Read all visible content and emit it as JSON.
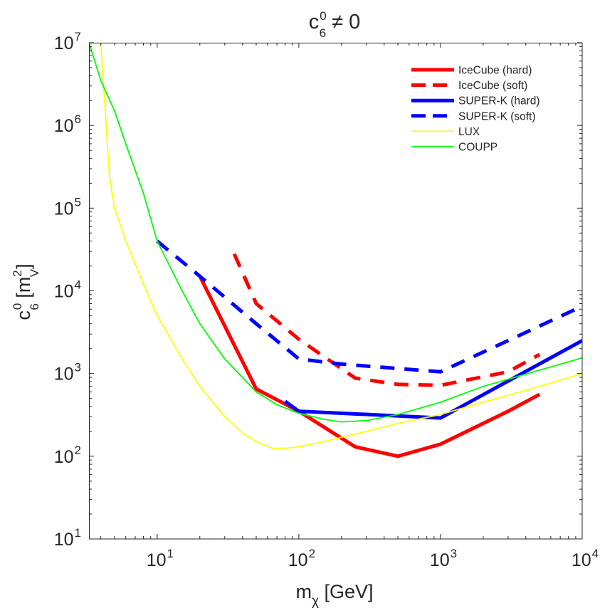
{
  "chart_data": {
    "type": "line",
    "title": "c₆⁰ ≠ 0",
    "title_parts": {
      "base": "c",
      "sup": "0",
      "sub": "6",
      "rest": " ≠ 0"
    },
    "xlabel": "mχ [GeV]",
    "xlabel_parts": {
      "base": "m",
      "sub": "χ",
      "rest": " [GeV]"
    },
    "ylabel": "c₆⁰ [m_V²]",
    "ylabel_parts": {
      "base": "c",
      "sup": "0",
      "sub": "6",
      "mid": " [m",
      "unit_sup": "2",
      "unit_sub": "V",
      "end": "]"
    },
    "xscale": "log",
    "yscale": "log",
    "xlim": [
      3.3,
      10000
    ],
    "ylim": [
      10,
      10000000
    ],
    "x_ticks": [
      {
        "value": 10,
        "base": "10",
        "exp": "1"
      },
      {
        "value": 100,
        "base": "10",
        "exp": "2"
      },
      {
        "value": 1000,
        "base": "10",
        "exp": "3"
      },
      {
        "value": 10000,
        "base": "10",
        "exp": "4"
      }
    ],
    "y_ticks": [
      {
        "value": 10,
        "base": "10",
        "exp": "1"
      },
      {
        "value": 100,
        "base": "10",
        "exp": "2"
      },
      {
        "value": 1000,
        "base": "10",
        "exp": "3"
      },
      {
        "value": 10000,
        "base": "10",
        "exp": "4"
      },
      {
        "value": 100000,
        "base": "10",
        "exp": "5"
      },
      {
        "value": 1000000,
        "base": "10",
        "exp": "6"
      },
      {
        "value": 10000000,
        "base": "10",
        "exp": "7"
      }
    ],
    "grid": false,
    "legend_position": "top-right",
    "series": [
      {
        "name": "IceCube (hard)",
        "color": "#ff0000",
        "style": "solid",
        "weight": "thick",
        "x": [
          20,
          50,
          100,
          250,
          500,
          1000,
          3000,
          5000
        ],
        "y": [
          15000,
          650,
          350,
          130,
          100,
          140,
          350,
          560
        ]
      },
      {
        "name": "IceCube (soft)",
        "color": "#ff0000",
        "style": "dashed",
        "weight": "thick",
        "x": [
          35,
          50,
          100,
          250,
          500,
          1000,
          3000,
          5000
        ],
        "y": [
          28000,
          7000,
          2600,
          880,
          740,
          720,
          1050,
          1700
        ]
      },
      {
        "name": "SUPER-K (hard)",
        "color": "#0000ff",
        "style": "solid",
        "weight": "thick",
        "x": [
          80,
          100,
          1000,
          10000
        ],
        "y": [
          460,
          350,
          290,
          2500
        ]
      },
      {
        "name": "SUPER-K (soft)",
        "color": "#0000ff",
        "style": "dashed",
        "weight": "thick",
        "x": [
          10,
          20,
          50,
          100,
          200,
          500,
          1000,
          3000,
          9000
        ],
        "y": [
          40000,
          15000,
          4000,
          1500,
          1300,
          1150,
          1050,
          2500,
          6000
        ]
      },
      {
        "name": "LUX",
        "color": "#ffff00",
        "style": "solid",
        "weight": "thin",
        "x": [
          4,
          4.3,
          4.6,
          5,
          6,
          8,
          10,
          15,
          20,
          30,
          40,
          50,
          65,
          80,
          100,
          150,
          200,
          300,
          500,
          1000,
          2000,
          5000,
          10000
        ],
        "y": [
          10000000,
          1500000,
          250000,
          100000,
          40000,
          12000,
          5000,
          1500,
          700,
          300,
          190,
          150,
          125,
          125,
          130,
          150,
          170,
          200,
          250,
          320,
          450,
          700,
          1000
        ]
      },
      {
        "name": "COUPP",
        "color": "#00ff00",
        "style": "solid",
        "weight": "thin",
        "x": [
          3.3,
          4,
          5,
          6,
          8,
          10,
          15,
          20,
          30,
          50,
          70,
          100,
          150,
          200,
          300,
          500,
          1000,
          2000,
          5000,
          10000
        ],
        "y": [
          10000000,
          3500000,
          1500000,
          600000,
          150000,
          40000,
          10000,
          4000,
          1500,
          600,
          420,
          330,
          280,
          260,
          270,
          320,
          450,
          700,
          1100,
          1550
        ]
      }
    ]
  }
}
